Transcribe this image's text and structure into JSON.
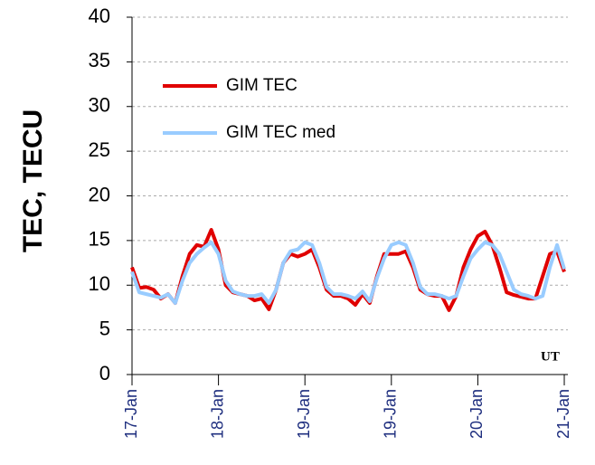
{
  "chart_data": {
    "type": "line",
    "y_label": "TEC, TECU",
    "annotation": "UT",
    "x": [
      0,
      2,
      4,
      6,
      8,
      10,
      12,
      14,
      16,
      18,
      20,
      22,
      24,
      26,
      28,
      30,
      32,
      34,
      36,
      38,
      40,
      42,
      44,
      46,
      48,
      50,
      52,
      54,
      56,
      58,
      60,
      62,
      64,
      66,
      68,
      70,
      72,
      74,
      76,
      78,
      80,
      82,
      84,
      86,
      88,
      90,
      92,
      94,
      96,
      98,
      100,
      102,
      104,
      106,
      108,
      110,
      112,
      114,
      116,
      118,
      120
    ],
    "series": [
      {
        "name": "GIM TEC",
        "color": "#e00000",
        "values": [
          12,
          9.7,
          9.8,
          9.5,
          8.5,
          9,
          8,
          11,
          13.5,
          14.5,
          14.3,
          16.2,
          14,
          10,
          9.2,
          9,
          8.8,
          8.3,
          8.5,
          7.3,
          9.5,
          12.5,
          13.5,
          13.2,
          13.5,
          14,
          12,
          9.5,
          8.8,
          8.8,
          8.5,
          7.8,
          9,
          8,
          11,
          13.5,
          13.5,
          13.5,
          13.8,
          12,
          9.5,
          9,
          8.8,
          8.8,
          7.2,
          8.8,
          12,
          14,
          15.5,
          16,
          14.5,
          12,
          9.2,
          8.9,
          8.7,
          8.5,
          8.5,
          11,
          13.5,
          13.8,
          11.5
        ]
      },
      {
        "name": "GIM TEC med",
        "color": "#99ccff",
        "values": [
          11.5,
          9.2,
          9,
          8.8,
          8.6,
          9,
          8,
          10.5,
          12.5,
          13.5,
          14.2,
          14.8,
          13.5,
          10.5,
          9.3,
          9,
          8.8,
          8.8,
          9,
          8,
          9.5,
          12.5,
          13.8,
          14,
          14.8,
          14.5,
          12.5,
          9.8,
          9,
          9,
          8.8,
          8.5,
          9.3,
          8.2,
          10.8,
          13,
          14.5,
          14.8,
          14.5,
          12.5,
          9.8,
          9,
          9,
          8.8,
          8.5,
          8.8,
          11,
          13,
          14,
          14.8,
          14.5,
          13.5,
          11.5,
          9.5,
          9,
          8.8,
          8.5,
          8.8,
          12,
          14.5,
          11.8
        ]
      }
    ],
    "xlim": [
      0,
      121
    ],
    "xticks": [
      {
        "value": 0,
        "label": "17-Jan"
      },
      {
        "value": 24,
        "label": "18-Jan"
      },
      {
        "value": 48,
        "label": "19-Jan"
      },
      {
        "value": 72,
        "label": "19-Jan"
      },
      {
        "value": 96,
        "label": "20-Jan"
      },
      {
        "value": 120,
        "label": "21-Jan"
      }
    ],
    "ylim": [
      0,
      40
    ],
    "yticks": [
      0,
      5,
      10,
      15,
      20,
      25,
      30,
      35,
      40
    ],
    "grid": true
  }
}
